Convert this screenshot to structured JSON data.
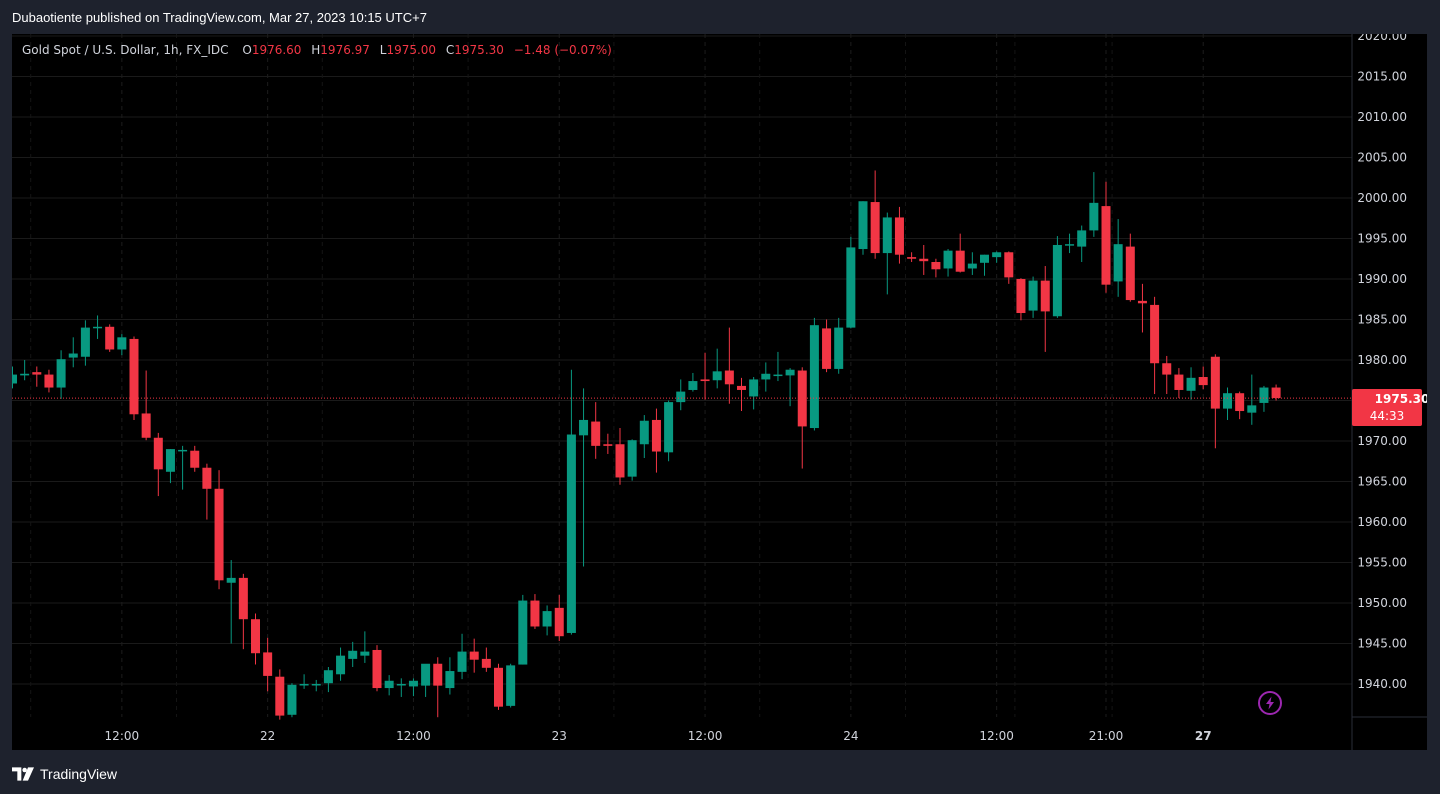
{
  "header": {
    "published_text": "Dubaotiente published on TradingView.com, Mar 27, 2023 10:15 UTC+7"
  },
  "legend": {
    "symbol": "Gold Spot / U.S. Dollar, 1h, FX_IDC",
    "o_label": "O",
    "o_value": "1976.60",
    "h_label": "H",
    "h_value": "1976.97",
    "l_label": "L",
    "l_value": "1975.00",
    "c_label": "C",
    "c_value": "1975.30",
    "change": "−1.48 (−0.07%)"
  },
  "price_tag": {
    "price": "1975.30",
    "countdown": "44:33"
  },
  "footer": {
    "brand": "TradingView"
  },
  "colors": {
    "up": "#089981",
    "down": "#f23645",
    "background": "#000000",
    "frame": "#1e222d",
    "grid": "#1a1a1a",
    "axis_text": "#d1d4dc",
    "flash_icon": "#9c27b0"
  },
  "icons": {
    "flash": "lightning-bolt-icon",
    "logo": "tradingview-logo-icon"
  },
  "chart_data": {
    "type": "candlestick",
    "timeframe": "1h",
    "symbol": "Gold Spot / U.S. Dollar",
    "ylim": [
      1935,
      2021
    ],
    "y_ticks": [
      "1940.00",
      "1945.00",
      "1950.00",
      "1955.00",
      "1960.00",
      "1965.00",
      "1970.00",
      "1975.00",
      "1980.00",
      "1985.00",
      "1990.00",
      "1995.00",
      "2000.00",
      "2005.00",
      "2010.00",
      "2015.00",
      "2020.00"
    ],
    "x_ticks": [
      {
        "label": "12:00",
        "index": 9,
        "bold": false
      },
      {
        "label": "22",
        "index": 21,
        "bold": false
      },
      {
        "label": "12:00",
        "index": 33,
        "bold": false
      },
      {
        "label": "23",
        "index": 45,
        "bold": false
      },
      {
        "label": "12:00",
        "index": 57,
        "bold": false
      },
      {
        "label": "24",
        "index": 69,
        "bold": false
      },
      {
        "label": "12:00",
        "index": 81,
        "bold": false
      },
      {
        "label": "21:00",
        "index": 90,
        "bold": false
      },
      {
        "label": "27",
        "index": 98,
        "bold": true
      }
    ],
    "last_price": 1975.3,
    "candles": [
      [
        1977.1,
        1979.2,
        1976.5,
        1978.2
      ],
      [
        1978.1,
        1980.0,
        1977.5,
        1978.3
      ],
      [
        1978.5,
        1979.2,
        1976.7,
        1978.2
      ],
      [
        1978.2,
        1978.8,
        1976.0,
        1976.6
      ],
      [
        1976.6,
        1981.2,
        1975.2,
        1980.1
      ],
      [
        1980.3,
        1982.8,
        1979.1,
        1980.8
      ],
      [
        1980.4,
        1984.9,
        1979.3,
        1984.0
      ],
      [
        1984.1,
        1985.5,
        1982.6,
        1984.1
      ],
      [
        1984.1,
        1984.4,
        1981.0,
        1981.3
      ],
      [
        1981.3,
        1983.2,
        1980.6,
        1982.8
      ],
      [
        1982.6,
        1982.9,
        1972.6,
        1973.3
      ],
      [
        1973.4,
        1978.7,
        1970.1,
        1970.4
      ],
      [
        1970.4,
        1971.0,
        1963.2,
        1966.5
      ],
      [
        1966.2,
        1969.0,
        1964.8,
        1969.0
      ],
      [
        1968.9,
        1969.4,
        1964.0,
        1968.9
      ],
      [
        1968.8,
        1969.4,
        1966.2,
        1966.7
      ],
      [
        1966.7,
        1967.2,
        1960.3,
        1964.1
      ],
      [
        1964.1,
        1966.4,
        1951.7,
        1952.8
      ],
      [
        1952.5,
        1955.3,
        1945.0,
        1953.1
      ],
      [
        1953.1,
        1953.6,
        1944.3,
        1948.0
      ],
      [
        1948.0,
        1948.7,
        1942.4,
        1943.8
      ],
      [
        1943.9,
        1945.7,
        1939.1,
        1941.0
      ],
      [
        1940.9,
        1941.8,
        1935.6,
        1936.1
      ],
      [
        1936.2,
        1940.1,
        1935.9,
        1939.9
      ],
      [
        1940.0,
        1941.2,
        1939.4,
        1940.0
      ],
      [
        1939.9,
        1940.5,
        1939.1,
        1940.0
      ],
      [
        1940.1,
        1942.1,
        1939.0,
        1941.7
      ],
      [
        1941.2,
        1944.5,
        1940.4,
        1943.5
      ],
      [
        1943.1,
        1945.2,
        1942.1,
        1944.1
      ],
      [
        1943.5,
        1946.5,
        1942.6,
        1944.0
      ],
      [
        1944.2,
        1944.8,
        1939.1,
        1939.5
      ],
      [
        1939.5,
        1941.1,
        1938.6,
        1940.4
      ],
      [
        1939.9,
        1940.7,
        1938.4,
        1940.0
      ],
      [
        1939.7,
        1940.7,
        1938.5,
        1940.4
      ],
      [
        1939.8,
        1942.3,
        1938.4,
        1942.5
      ],
      [
        1942.5,
        1943.3,
        1935.9,
        1939.8
      ],
      [
        1939.5,
        1943.3,
        1938.7,
        1941.6
      ],
      [
        1941.5,
        1946.2,
        1940.6,
        1944.0
      ],
      [
        1944.0,
        1945.6,
        1941.4,
        1943.0
      ],
      [
        1943.1,
        1944.5,
        1941.5,
        1942.0
      ],
      [
        1942.0,
        1942.5,
        1936.8,
        1937.2
      ],
      [
        1937.3,
        1942.5,
        1937.1,
        1942.3
      ],
      [
        1942.4,
        1951.0,
        1942.4,
        1950.3
      ],
      [
        1950.3,
        1951.1,
        1946.8,
        1947.1
      ],
      [
        1947.1,
        1949.7,
        1946.0,
        1949.0
      ],
      [
        1949.4,
        1951.0,
        1945.3,
        1945.9
      ],
      [
        1946.3,
        1978.8,
        1946.1,
        1970.8
      ],
      [
        1970.7,
        1976.5,
        1954.5,
        1972.6
      ],
      [
        1972.4,
        1974.8,
        1967.8,
        1969.4
      ],
      [
        1969.6,
        1970.9,
        1968.4,
        1969.4
      ],
      [
        1969.6,
        1971.6,
        1964.6,
        1965.5
      ],
      [
        1965.6,
        1970.2,
        1965.1,
        1970.1
      ],
      [
        1969.6,
        1973.2,
        1967.9,
        1972.5
      ],
      [
        1972.6,
        1974.0,
        1966.1,
        1968.7
      ],
      [
        1968.6,
        1975.0,
        1967.5,
        1974.8
      ],
      [
        1974.8,
        1977.6,
        1973.8,
        1976.1
      ],
      [
        1976.3,
        1978.4,
        1976.1,
        1977.4
      ],
      [
        1977.6,
        1980.9,
        1975.1,
        1977.4
      ],
      [
        1977.5,
        1981.4,
        1976.5,
        1978.6
      ],
      [
        1978.7,
        1984.0,
        1974.6,
        1977.0
      ],
      [
        1976.8,
        1977.8,
        1973.7,
        1976.3
      ],
      [
        1975.5,
        1977.9,
        1973.9,
        1977.6
      ],
      [
        1977.6,
        1979.7,
        1976.1,
        1978.3
      ],
      [
        1978.2,
        1981.0,
        1977.4,
        1978.2
      ],
      [
        1978.1,
        1979.0,
        1974.3,
        1978.8
      ],
      [
        1978.7,
        1979.1,
        1966.6,
        1971.8
      ],
      [
        1971.6,
        1985.2,
        1971.3,
        1984.3
      ],
      [
        1983.9,
        1985.0,
        1978.5,
        1978.9
      ],
      [
        1978.9,
        1985.2,
        1978.3,
        1984.0
      ],
      [
        1984.0,
        1995.2,
        1983.9,
        1993.9
      ],
      [
        1993.7,
        1999.6,
        1993.0,
        1999.6
      ],
      [
        1999.5,
        2003.4,
        1992.5,
        1993.2
      ],
      [
        1993.2,
        1998.2,
        1988.1,
        1997.6
      ],
      [
        1997.6,
        1998.9,
        1991.9,
        1993.0
      ],
      [
        1992.7,
        1993.3,
        1992.1,
        1992.5
      ],
      [
        1992.5,
        1994.2,
        1990.5,
        1992.2
      ],
      [
        1992.1,
        1992.5,
        1990.2,
        1991.2
      ],
      [
        1991.3,
        1993.7,
        1990.3,
        1993.5
      ],
      [
        1993.5,
        1995.6,
        1990.8,
        1990.9
      ],
      [
        1991.3,
        1993.3,
        1990.5,
        1991.9
      ],
      [
        1992.0,
        1993.0,
        1990.4,
        1993.0
      ],
      [
        1992.7,
        1993.4,
        1992.0,
        1993.3
      ],
      [
        1993.3,
        1993.4,
        1989.4,
        1990.2
      ],
      [
        1990.0,
        1990.1,
        1984.9,
        1985.8
      ],
      [
        1986.1,
        1990.3,
        1985.2,
        1989.8
      ],
      [
        1989.8,
        1991.6,
        1981.0,
        1986.0
      ],
      [
        1985.4,
        1995.3,
        1985.2,
        1994.2
      ],
      [
        1994.2,
        1995.6,
        1993.2,
        1994.3
      ],
      [
        1994.0,
        1996.6,
        1992.1,
        1996.0
      ],
      [
        1996.0,
        2003.2,
        1995.2,
        1999.4
      ],
      [
        1999.0,
        2002.0,
        1988.3,
        1989.3
      ],
      [
        1989.7,
        1997.4,
        1987.8,
        1994.3
      ],
      [
        1994.0,
        1995.6,
        1987.2,
        1987.4
      ],
      [
        1987.3,
        1989.4,
        1983.4,
        1987.0
      ],
      [
        1986.8,
        1987.8,
        1975.8,
        1979.6
      ],
      [
        1979.6,
        1980.5,
        1975.8,
        1978.2
      ],
      [
        1978.2,
        1979.0,
        1975.3,
        1976.3
      ],
      [
        1976.2,
        1979.1,
        1975.1,
        1977.8
      ],
      [
        1977.9,
        1979.2,
        1976.4,
        1976.9
      ],
      [
        1980.4,
        1980.7,
        1969.1,
        1974.0
      ],
      [
        1974.0,
        1976.6,
        1972.6,
        1975.9
      ],
      [
        1975.9,
        1976.1,
        1972.7,
        1973.7
      ],
      [
        1973.5,
        1978.2,
        1972.0,
        1974.4
      ],
      [
        1974.7,
        1976.8,
        1973.6,
        1976.6
      ],
      [
        1976.6,
        1976.97,
        1975.0,
        1975.3
      ]
    ]
  }
}
